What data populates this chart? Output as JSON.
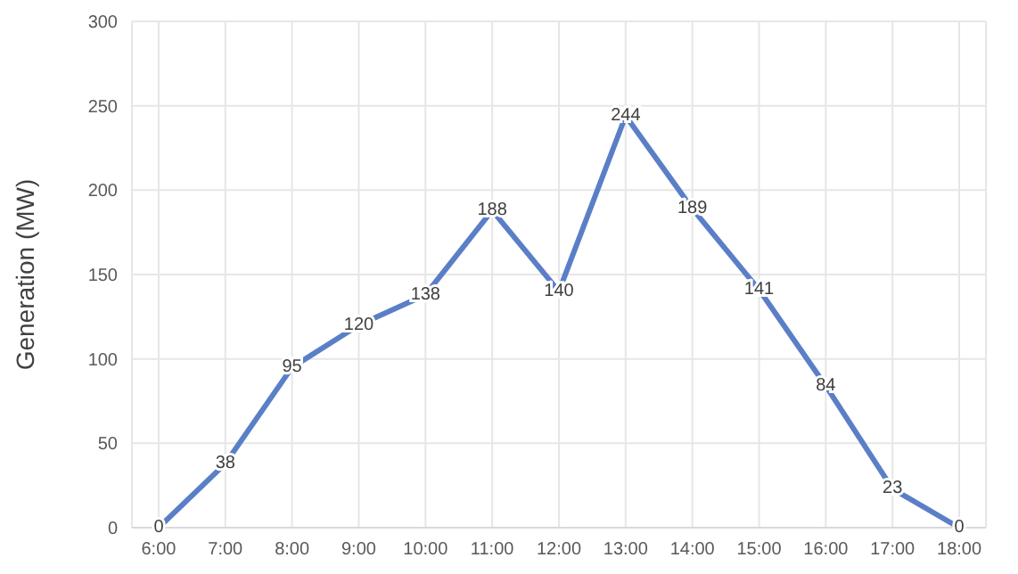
{
  "chart_data": {
    "type": "line",
    "ylabel": "Generation (MW)",
    "categories": [
      "6:00",
      "7:00",
      "8:00",
      "9:00",
      "10:00",
      "11:00",
      "12:00",
      "13:00",
      "14:00",
      "15:00",
      "16:00",
      "17:00",
      "18:00"
    ],
    "series": [
      {
        "color": "#5b7fc7",
        "values": [
          0,
          38,
          95,
          120,
          138,
          188,
          140,
          244,
          189,
          141,
          84,
          23,
          0
        ]
      }
    ],
    "ylim": [
      0,
      300
    ],
    "yticks": [
      0,
      50,
      100,
      150,
      200,
      250,
      300
    ],
    "grid": true,
    "data_labels": true,
    "marker": "none",
    "line_style": "solid"
  }
}
